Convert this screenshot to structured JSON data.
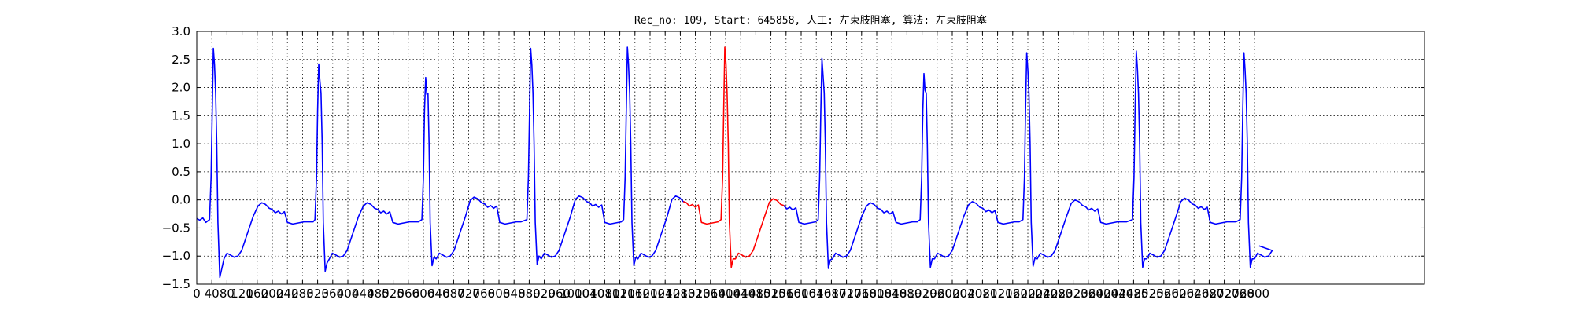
{
  "chart_data": {
    "type": "line",
    "title": "Rec_no: 109, Start: 645858, 人工: 左束肢阻塞, 算法: 左束肢阻塞",
    "xlabel": "",
    "ylabel": "",
    "xlim": [
      0,
      3250
    ],
    "ylim": [
      -1.5,
      3.0
    ],
    "y_ticks": [
      -1.5,
      -1.0,
      -0.5,
      0.0,
      0.5,
      1.0,
      1.5,
      2.0,
      2.5,
      3.0
    ],
    "y_tick_labels": [
      "−1.5",
      "−1.0",
      "−0.5",
      "0.0",
      "0.5",
      "1.0",
      "1.5",
      "2.0",
      "2.5",
      "3.0"
    ],
    "x_ticks": [
      0,
      40,
      80,
      120,
      160,
      200,
      240,
      280,
      320,
      360,
      400,
      440,
      480,
      520,
      560,
      600,
      640,
      680,
      720,
      760,
      800,
      840,
      880,
      920,
      960,
      1000,
      1040,
      1080,
      1120,
      1160,
      1200,
      1240,
      1280,
      1320,
      1360,
      1400,
      1440,
      1480,
      1520,
      1560,
      1600,
      1640,
      1680,
      1720,
      1760,
      1800,
      1840,
      1880,
      1920,
      1960,
      2000,
      2040,
      2080,
      2120,
      2160,
      2200,
      2240,
      2280,
      2320,
      2360,
      2400,
      2440,
      2480,
      2520,
      2560,
      2600,
      2640,
      2680,
      2720,
      2760,
      2800
    ],
    "x_tick_labels": [
      "0",
      "40",
      "80",
      "120",
      "160",
      "200",
      "240",
      "280",
      "320",
      "360",
      "400",
      "440",
      "480",
      "520",
      "560",
      "600",
      "640",
      "680",
      "720",
      "760",
      "800",
      "840",
      "880",
      "920",
      "960",
      "1000",
      "1040",
      "1080",
      "1120",
      "1160",
      "1200",
      "1240",
      "1280",
      "1320",
      "1360",
      "1400",
      "1440",
      "1480",
      "1520",
      "1560",
      "1600",
      "1640",
      "1680",
      "1720",
      "1760",
      "1800",
      "1840",
      "1880",
      "1920",
      "1960",
      "2000",
      "2040",
      "2080",
      "2120",
      "2160",
      "2200",
      "2240",
      "2280",
      "2320",
      "2360",
      "2400",
      "2440",
      "2480",
      "2520",
      "2560",
      "2600",
      "2640",
      "2680",
      "2720",
      "2760",
      "2800"
    ],
    "grid": true,
    "line_color": "#0000ff",
    "highlight_color": "#ff0000",
    "highlight_range": [
      1300,
      1550
    ],
    "baseline": -0.35,
    "beats": [
      {
        "peak_x": 44,
        "peak_y": 2.7,
        "trough_y": -1.38,
        "twave_y": -0.05
      },
      {
        "peak_x": 323,
        "peak_y": 2.42,
        "trough_y": -1.27,
        "twave_y": -0.05
      },
      {
        "peak_x": 606,
        "peak_y": 2.18,
        "trough_y": -1.17,
        "twave_y": 0.05
      },
      {
        "peak_x": 884,
        "peak_y": 2.7,
        "trough_y": -1.15,
        "twave_y": 0.07
      },
      {
        "peak_x": 1140,
        "peak_y": 2.72,
        "trough_y": -1.17,
        "twave_y": 0.07
      },
      {
        "peak_x": 1398,
        "peak_y": 2.72,
        "trough_y": -1.2,
        "twave_y": 0.02
      },
      {
        "peak_x": 1655,
        "peak_y": 2.52,
        "trough_y": -1.22,
        "twave_y": -0.05
      },
      {
        "peak_x": 1925,
        "peak_y": 2.25,
        "trough_y": -1.2,
        "twave_y": -0.03
      },
      {
        "peak_x": 2197,
        "peak_y": 2.62,
        "trough_y": -1.18,
        "twave_y": 0.0
      },
      {
        "peak_x": 2487,
        "peak_y": 2.65,
        "trough_y": -1.2,
        "twave_y": 0.03
      },
      {
        "peak_x": 2772,
        "peak_y": 2.62,
        "trough_y": -1.2,
        "twave_y": null
      }
    ],
    "x_end": 2812,
    "y_end": -0.82
  }
}
